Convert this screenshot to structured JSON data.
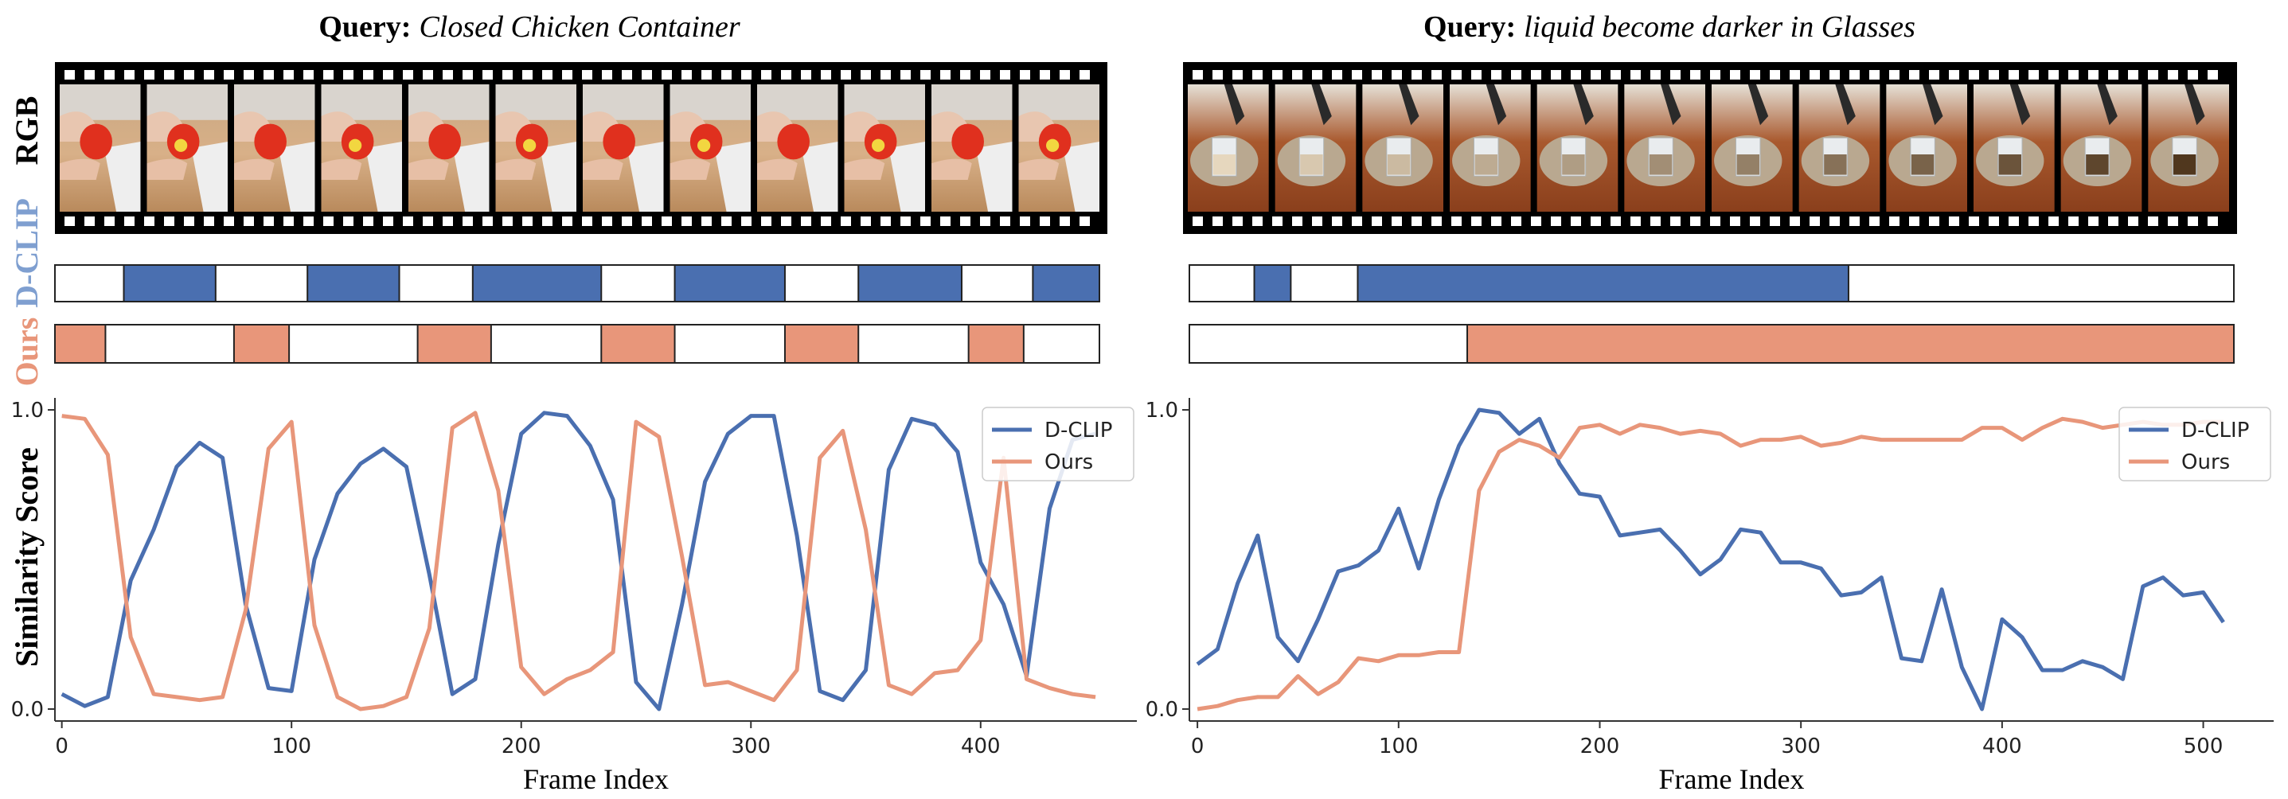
{
  "row_labels": {
    "rgb": "RGB",
    "dclip": "D-CLIP",
    "ours": "Ours"
  },
  "y_axis_label": "Similarity Score",
  "colors": {
    "dclip": "#4a6fb0",
    "ours": "#e8967a",
    "dclip_label": "#7f9fd0",
    "ours_label": "#e8967a",
    "film": "#000000"
  },
  "panels": [
    {
      "query_prefix": "Query:",
      "query_text": "Closed Chicken Container",
      "frame_strip": {
        "frame_count": 12,
        "scene": "hand opening red chicken-shaped container on wooden board"
      },
      "dclip_bar_segments": [
        [
          30,
          70
        ],
        [
          110,
          150
        ],
        [
          182,
          238
        ],
        [
          270,
          318
        ],
        [
          350,
          395
        ],
        [
          426,
          455
        ]
      ],
      "ours_bar_segments": [
        [
          0,
          22
        ],
        [
          78,
          102
        ],
        [
          158,
          190
        ],
        [
          238,
          270
        ],
        [
          318,
          350
        ],
        [
          398,
          422
        ]
      ],
      "bar_range": [
        0,
        455
      ]
    },
    {
      "query_prefix": "Query:",
      "query_text": "liquid become darker in Glasses",
      "frame_strip": {
        "frame_count": 12,
        "scene": "pouring dark liquid into glass on woven placemat"
      },
      "dclip_bar_segments": [
        [
          32,
          50
        ],
        [
          83,
          325
        ]
      ],
      "ours_bar_segments": [
        [
          137,
          515
        ]
      ],
      "bar_range": [
        0,
        515
      ]
    }
  ],
  "chart_data": [
    {
      "type": "line",
      "xlabel": "Frame Index",
      "ylabel": "Similarity Score",
      "xlim": [
        -3,
        468
      ],
      "ylim": [
        -0.04,
        1.04
      ],
      "xticks": [
        0,
        100,
        200,
        300,
        400
      ],
      "yticks": [
        0.0,
        1.0
      ],
      "legend": "top-right",
      "series": [
        {
          "name": "D-CLIP",
          "color": "#4a6fb0",
          "x": [
            0,
            10,
            20,
            30,
            40,
            50,
            60,
            70,
            80,
            90,
            100,
            110,
            120,
            130,
            140,
            150,
            160,
            170,
            180,
            190,
            200,
            210,
            220,
            230,
            240,
            250,
            260,
            270,
            280,
            290,
            300,
            310,
            320,
            330,
            340,
            350,
            360,
            370,
            380,
            390,
            400,
            410,
            420,
            430,
            440,
            450
          ],
          "y": [
            0.05,
            0.01,
            0.04,
            0.43,
            0.6,
            0.81,
            0.89,
            0.84,
            0.35,
            0.07,
            0.06,
            0.5,
            0.72,
            0.82,
            0.87,
            0.81,
            0.45,
            0.05,
            0.1,
            0.55,
            0.92,
            0.99,
            0.98,
            0.88,
            0.7,
            0.09,
            0.0,
            0.35,
            0.76,
            0.92,
            0.98,
            0.98,
            0.58,
            0.06,
            0.03,
            0.13,
            0.8,
            0.97,
            0.95,
            0.86,
            0.49,
            0.35,
            0.11,
            0.67,
            0.9,
            0.92
          ]
        },
        {
          "name": "Ours",
          "color": "#e8967a",
          "x": [
            0,
            10,
            20,
            30,
            40,
            50,
            60,
            70,
            80,
            90,
            100,
            110,
            120,
            130,
            140,
            150,
            160,
            170,
            180,
            190,
            200,
            210,
            220,
            230,
            240,
            250,
            260,
            270,
            280,
            290,
            300,
            310,
            320,
            330,
            340,
            350,
            360,
            370,
            380,
            390,
            400,
            410,
            420,
            430,
            440,
            450
          ],
          "y": [
            0.98,
            0.97,
            0.85,
            0.24,
            0.05,
            0.04,
            0.03,
            0.04,
            0.33,
            0.87,
            0.96,
            0.28,
            0.04,
            0.0,
            0.01,
            0.04,
            0.27,
            0.94,
            0.99,
            0.73,
            0.14,
            0.05,
            0.1,
            0.13,
            0.19,
            0.96,
            0.91,
            0.51,
            0.08,
            0.09,
            0.06,
            0.03,
            0.13,
            0.84,
            0.93,
            0.6,
            0.08,
            0.05,
            0.12,
            0.13,
            0.23,
            0.84,
            0.1,
            0.07,
            0.05,
            0.04
          ]
        }
      ]
    },
    {
      "type": "line",
      "xlabel": "Frame Index",
      "ylabel": "",
      "xlim": [
        -4,
        535
      ],
      "ylim": [
        -0.04,
        1.04
      ],
      "xticks": [
        0,
        100,
        200,
        300,
        400,
        500
      ],
      "yticks": [
        0.0,
        1.0
      ],
      "legend": "top-right",
      "series": [
        {
          "name": "D-CLIP",
          "color": "#4a6fb0",
          "x": [
            0,
            10,
            20,
            30,
            40,
            50,
            60,
            70,
            80,
            90,
            100,
            110,
            120,
            130,
            140,
            150,
            160,
            170,
            180,
            190,
            200,
            210,
            220,
            230,
            240,
            250,
            260,
            270,
            280,
            290,
            300,
            310,
            320,
            330,
            340,
            350,
            360,
            370,
            380,
            390,
            400,
            410,
            420,
            430,
            440,
            450,
            460,
            470,
            480,
            490,
            500,
            510
          ],
          "y": [
            0.15,
            0.2,
            0.42,
            0.58,
            0.24,
            0.16,
            0.3,
            0.46,
            0.48,
            0.53,
            0.67,
            0.47,
            0.7,
            0.88,
            1.0,
            0.99,
            0.92,
            0.97,
            0.82,
            0.72,
            0.71,
            0.58,
            0.59,
            0.6,
            0.53,
            0.45,
            0.5,
            0.6,
            0.59,
            0.49,
            0.49,
            0.47,
            0.38,
            0.39,
            0.44,
            0.17,
            0.16,
            0.4,
            0.14,
            0.0,
            0.3,
            0.24,
            0.13,
            0.13,
            0.16,
            0.14,
            0.1,
            0.41,
            0.44,
            0.38,
            0.39,
            0.29
          ]
        },
        {
          "name": "Ours",
          "color": "#e8967a",
          "x": [
            0,
            10,
            20,
            30,
            40,
            50,
            60,
            70,
            80,
            90,
            100,
            110,
            120,
            130,
            140,
            150,
            160,
            170,
            180,
            190,
            200,
            210,
            220,
            230,
            240,
            250,
            260,
            270,
            280,
            290,
            300,
            310,
            320,
            330,
            340,
            350,
            360,
            370,
            380,
            390,
            400,
            410,
            420,
            430,
            440,
            450,
            460,
            470,
            480,
            490,
            500,
            510
          ],
          "y": [
            0.0,
            0.01,
            0.03,
            0.04,
            0.04,
            0.11,
            0.05,
            0.09,
            0.17,
            0.16,
            0.18,
            0.18,
            0.19,
            0.19,
            0.73,
            0.86,
            0.9,
            0.88,
            0.84,
            0.94,
            0.95,
            0.92,
            0.95,
            0.94,
            0.92,
            0.93,
            0.92,
            0.88,
            0.9,
            0.9,
            0.91,
            0.88,
            0.89,
            0.91,
            0.9,
            0.9,
            0.9,
            0.9,
            0.9,
            0.94,
            0.94,
            0.9,
            0.94,
            0.97,
            0.96,
            0.94,
            0.95,
            0.96,
            0.95,
            0.95,
            0.96,
            0.96
          ]
        }
      ]
    }
  ]
}
